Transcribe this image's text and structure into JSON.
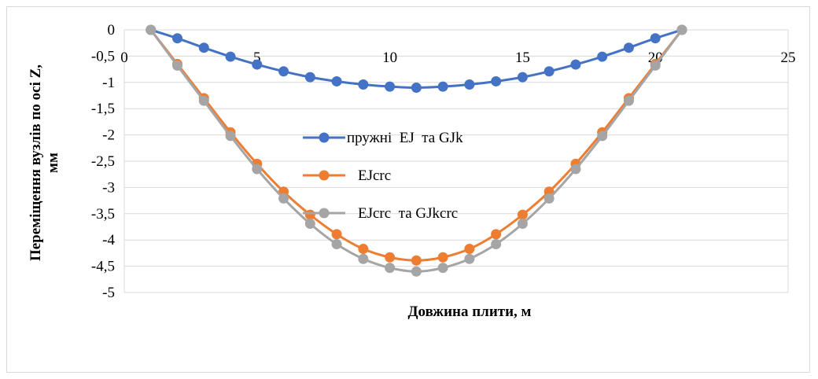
{
  "chart_data": {
    "type": "scatter",
    "xlabel": "Довжина плити, м",
    "ylabel_line1": "Переміщення вузлів по осі Z,",
    "ylabel_line2": "мм",
    "xlim": [
      0,
      25
    ],
    "ylim": [
      -5,
      0
    ],
    "xticks": [
      0,
      5,
      10,
      15,
      20,
      25
    ],
    "yticks": [
      0,
      -0.5,
      -1,
      -1.5,
      -2,
      -2.5,
      -3,
      -3.5,
      -4,
      -4.5,
      -5
    ],
    "decimal_separator": ",",
    "grid": "horizontal",
    "legend_position": "center",
    "x": [
      1,
      2,
      3,
      4,
      5,
      6,
      7,
      8,
      9,
      10,
      11,
      12,
      13,
      14,
      15,
      16,
      17,
      18,
      19,
      20,
      21
    ],
    "series": [
      {
        "name": "пружні  EJ  та GJk",
        "color": "#4472c4",
        "values": [
          0,
          -0.16,
          -0.34,
          -0.51,
          -0.66,
          -0.79,
          -0.9,
          -0.98,
          -1.04,
          -1.08,
          -1.1,
          -1.08,
          -1.04,
          -0.98,
          -0.9,
          -0.79,
          -0.66,
          -0.51,
          -0.34,
          -0.16,
          0
        ]
      },
      {
        "name": "EJcrc",
        "color": "#ed7d31",
        "values": [
          0,
          -0.65,
          -1.3,
          -1.95,
          -2.55,
          -3.08,
          -3.52,
          -3.89,
          -4.17,
          -4.33,
          -4.39,
          -4.33,
          -4.17,
          -3.89,
          -3.52,
          -3.08,
          -2.55,
          -1.95,
          -1.3,
          -0.65,
          0
        ]
      },
      {
        "name": "EJcrc  та GJkcrc",
        "color": "#a5a5a5",
        "values": [
          0,
          -0.68,
          -1.35,
          -2.02,
          -2.65,
          -3.21,
          -3.69,
          -4.08,
          -4.36,
          -4.53,
          -4.6,
          -4.53,
          -4.36,
          -4.08,
          -3.69,
          -3.21,
          -2.65,
          -2.02,
          -1.35,
          -0.68,
          0
        ]
      }
    ]
  }
}
